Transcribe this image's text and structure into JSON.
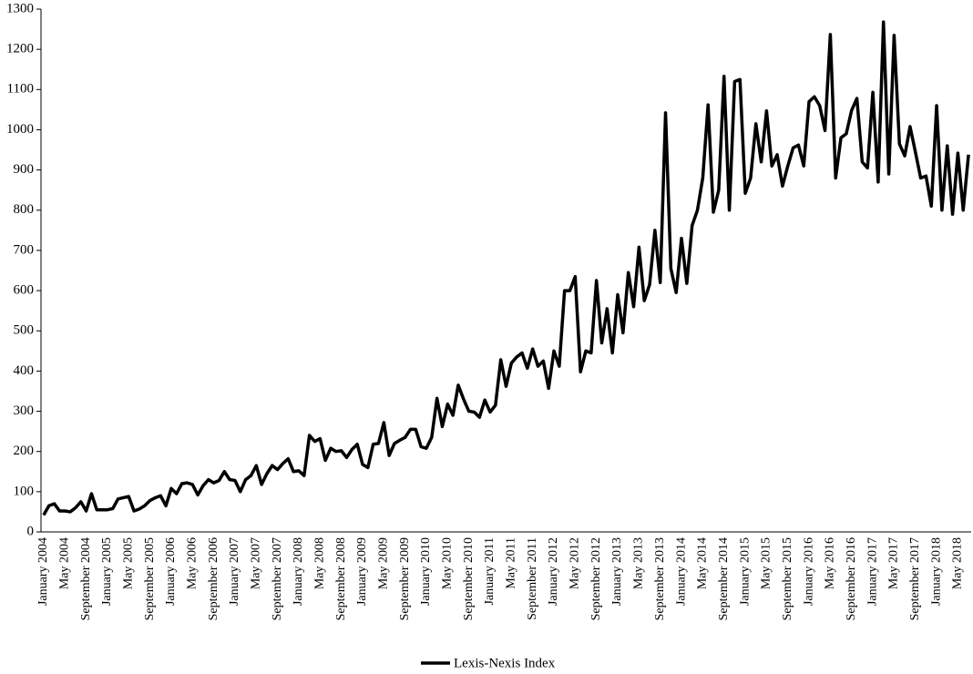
{
  "chart_data": {
    "type": "line",
    "categories": [
      "January 2004",
      null,
      null,
      null,
      "May 2004",
      null,
      null,
      null,
      "September 2004",
      null,
      null,
      null,
      "January 2005",
      null,
      null,
      null,
      "May 2005",
      null,
      null,
      null,
      "September 2005",
      null,
      null,
      null,
      "January 2006",
      null,
      null,
      null,
      "May 2006",
      null,
      null,
      null,
      "September 2006",
      null,
      null,
      null,
      "January 2007",
      null,
      null,
      null,
      "May 2007",
      null,
      null,
      null,
      "September 2007",
      null,
      null,
      null,
      "January 2008",
      null,
      null,
      null,
      "May 2008",
      null,
      null,
      null,
      "September 2008",
      null,
      null,
      null,
      "January 2009",
      null,
      null,
      null,
      "May 2009",
      null,
      null,
      null,
      "September 2009",
      null,
      null,
      null,
      "January 2010",
      null,
      null,
      null,
      "May 2010",
      null,
      null,
      null,
      "September 2010",
      null,
      null,
      null,
      "January 2011",
      null,
      null,
      null,
      "May 2011",
      null,
      null,
      null,
      "September 2011",
      null,
      null,
      null,
      "January 2012",
      null,
      null,
      null,
      "May 2012",
      null,
      null,
      null,
      "September 2012",
      null,
      null,
      null,
      "January 2013",
      null,
      null,
      null,
      "May 2013",
      null,
      null,
      null,
      "September 2013",
      null,
      null,
      null,
      "January 2014",
      null,
      null,
      null,
      "May 2014",
      null,
      null,
      null,
      "September 2014",
      null,
      null,
      null,
      "January 2015",
      null,
      null,
      null,
      "May 2015",
      null,
      null,
      null,
      "September 2015",
      null,
      null,
      null,
      "January 2016",
      null,
      null,
      null,
      "May 2016",
      null,
      null,
      null,
      "September 2016",
      null,
      null,
      null,
      "January 2017",
      null,
      null,
      null,
      "May 2017",
      null,
      null,
      null,
      "September 2017",
      null,
      null,
      null,
      "January 2018",
      null,
      null,
      null,
      "May 2018",
      null,
      null
    ],
    "series": [
      {
        "name": "Lexis-Nexis Index",
        "color": "#000000",
        "values": [
          42,
          65,
          70,
          52,
          52,
          50,
          60,
          75,
          52,
          95,
          55,
          55,
          55,
          58,
          82,
          85,
          88,
          52,
          57,
          65,
          78,
          85,
          90,
          65,
          108,
          95,
          120,
          122,
          118,
          92,
          115,
          130,
          122,
          128,
          150,
          130,
          128,
          100,
          130,
          140,
          165,
          118,
          145,
          165,
          155,
          170,
          182,
          150,
          152,
          140,
          240,
          225,
          232,
          178,
          208,
          200,
          202,
          185,
          205,
          218,
          168,
          160,
          218,
          220,
          272,
          190,
          220,
          228,
          235,
          255,
          255,
          212,
          208,
          235,
          332,
          262,
          318,
          290,
          365,
          330,
          300,
          298,
          285,
          328,
          298,
          315,
          428,
          362,
          420,
          435,
          445,
          407,
          455,
          412,
          425,
          357,
          450,
          412,
          600,
          600,
          635,
          398,
          450,
          445,
          625,
          470,
          555,
          445,
          590,
          495,
          645,
          560,
          708,
          575,
          615,
          750,
          620,
          1042,
          655,
          595,
          730,
          618,
          762,
          800,
          880,
          1062,
          795,
          850,
          1133,
          800,
          1120,
          1125,
          842,
          880,
          1015,
          920,
          1047,
          910,
          938,
          860,
          910,
          955,
          962,
          910,
          1070,
          1082,
          1060,
          998,
          1237,
          880,
          980,
          990,
          1048,
          1078,
          920,
          905,
          1093,
          870,
          1268,
          890,
          1235,
          965,
          935,
          1008,
          945,
          880,
          885,
          810,
          1060,
          800,
          960,
          790,
          942,
          800,
          938
        ]
      }
    ],
    "ylim": [
      0,
      1300
    ],
    "yticks": [
      0,
      100,
      200,
      300,
      400,
      500,
      600,
      700,
      800,
      900,
      1000,
      1100,
      1200,
      1300
    ],
    "grid": false,
    "legend": "bottom"
  }
}
